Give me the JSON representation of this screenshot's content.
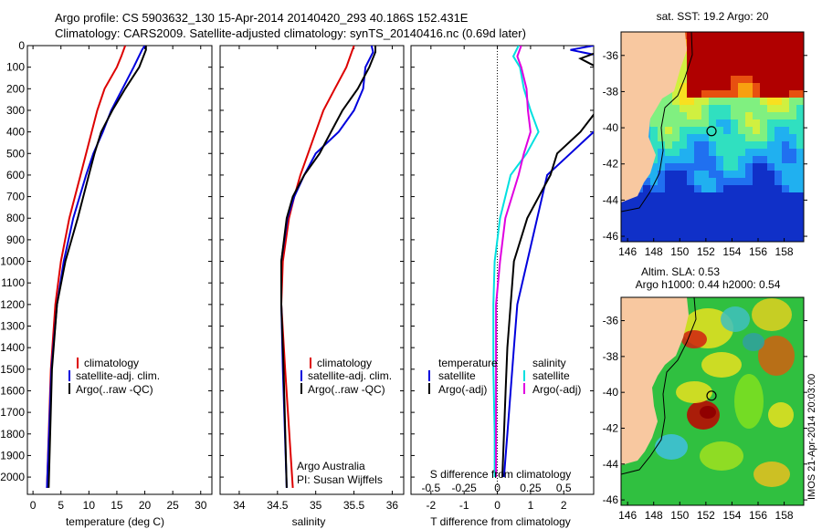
{
  "header": {
    "line1": "Argo profile: CS 5903632_130 15-Apr-2014 20140420_293 40.186S 152.431E",
    "line2": "Climatology: CARS2009. Satellite-adjusted climatology: synTS_20140416.nc (0.69d later)"
  },
  "map_sst": {
    "title": "sat. SST: 19.2 Argo: 20",
    "xticks": [
      "146",
      "148",
      "150",
      "152",
      "154",
      "156",
      "158"
    ],
    "yticks": [
      "-36",
      "-38",
      "-40",
      "-42",
      "-44",
      "-46"
    ],
    "argo_lon": 152.431,
    "argo_lat": -40.186,
    "xlim": [
      145.5,
      159.5
    ],
    "ylim": [
      -46.3,
      -34.7
    ]
  },
  "map_sla": {
    "title1": "Altim. SLA: 0.53",
    "title2": "Argo h1000: 0.44 h2000: 0.54",
    "xticks": [
      "146",
      "148",
      "150",
      "152",
      "154",
      "156",
      "158"
    ],
    "yticks": [
      "-36",
      "-38",
      "-40",
      "-42",
      "-44",
      "-46"
    ],
    "argo_lon": 152.431,
    "argo_lat": -40.186,
    "xlim": [
      145.5,
      159.5
    ],
    "ylim": [
      -46.3,
      -34.7
    ]
  },
  "watermark": "IMOS 21-Apr-2014 20:03:00",
  "colors": {
    "climatology": "#dd0000",
    "satellite": "#0000dd",
    "argo": "#000000",
    "sal_sat": "#00e0e0",
    "sal_argo": "#e000e0",
    "land": "#f8c8a0"
  },
  "chart_data": [
    {
      "type": "line",
      "xlabel": "temperature (deg C)",
      "ylabel": "",
      "xlim": [
        -1,
        32
      ],
      "ylim": [
        2080,
        0
      ],
      "xticks": [
        "0",
        "5",
        "10",
        "15",
        "20",
        "25",
        "30"
      ],
      "yticks": [
        "0",
        "100",
        "200",
        "300",
        "400",
        "500",
        "600",
        "700",
        "800",
        "900",
        "1000",
        "1100",
        "1200",
        "1300",
        "1400",
        "1500",
        "1600",
        "1700",
        "1800",
        "1900",
        "2000"
      ],
      "legend": [
        "climatology",
        "satellite-adj. clim.",
        "Argo(..raw -QC)"
      ],
      "legend_placement": "lower-center",
      "series": [
        {
          "name": "climatology",
          "depth": [
            0,
            50,
            100,
            200,
            300,
            400,
            500,
            600,
            800,
            1000,
            1200,
            1500,
            2050
          ],
          "values": [
            16.5,
            15.8,
            15.0,
            12.8,
            11.5,
            10.5,
            9.5,
            8.5,
            6.5,
            5.0,
            4.0,
            3.2,
            2.5
          ]
        },
        {
          "name": "satellite-adj. clim.",
          "depth": [
            0,
            20,
            100,
            200,
            300,
            400,
            500,
            600,
            800,
            1000,
            1200,
            1500,
            2050
          ],
          "values": [
            20.0,
            19.5,
            18.0,
            16.0,
            14.0,
            12.5,
            10.8,
            9.5,
            7.2,
            5.5,
            4.3,
            3.3,
            2.5
          ]
        },
        {
          "name": "Argo(..raw -QC)",
          "depth": [
            0,
            20,
            100,
            200,
            300,
            400,
            500,
            600,
            800,
            1000,
            1200,
            1500,
            2050
          ],
          "values": [
            20.2,
            20.2,
            19.0,
            16.5,
            14.2,
            12.2,
            11.0,
            10.0,
            8.0,
            5.8,
            4.3,
            3.4,
            2.8
          ]
        }
      ]
    },
    {
      "type": "line",
      "xlabel": "salinity",
      "xlim": [
        33.75,
        36.15
      ],
      "ylim": [
        2080,
        0
      ],
      "xticks": [
        "34",
        "34.5",
        "35",
        "35.5",
        "36"
      ],
      "legend": [
        "climatology",
        "satellite-adj. clim.",
        "Argo(..raw -QC)"
      ],
      "annotation": [
        "Argo Australia",
        "PI: Susan Wijffels"
      ],
      "series": [
        {
          "name": "climatology",
          "depth": [
            0,
            100,
            200,
            300,
            400,
            500,
            600,
            700,
            800,
            1000,
            1200,
            1500,
            2050
          ],
          "values": [
            35.5,
            35.4,
            35.25,
            35.1,
            35.0,
            34.9,
            34.8,
            34.72,
            34.65,
            34.57,
            34.55,
            34.6,
            34.7
          ]
        },
        {
          "name": "satellite-adj. clim.",
          "depth": [
            0,
            30,
            100,
            200,
            300,
            400,
            500,
            600,
            700,
            800,
            1000,
            1200,
            1500,
            2050
          ],
          "values": [
            35.73,
            35.75,
            35.65,
            35.62,
            35.5,
            35.3,
            35.0,
            34.85,
            34.72,
            34.63,
            34.55,
            34.55,
            34.57,
            34.62
          ]
        },
        {
          "name": "Argo(..raw -QC)",
          "depth": [
            0,
            30,
            100,
            200,
            300,
            400,
            500,
            600,
            700,
            800,
            1000,
            1200,
            1500,
            2050
          ],
          "values": [
            35.78,
            35.78,
            35.7,
            35.55,
            35.35,
            35.2,
            35.05,
            34.85,
            34.7,
            34.62,
            34.55,
            34.55,
            34.58,
            34.62
          ]
        }
      ]
    },
    {
      "type": "line",
      "xlabel_top": "S difference from climatology",
      "xlabel": "T difference from climatology",
      "xlim": [
        -2.6,
        2.9
      ],
      "ylim": [
        2080,
        0
      ],
      "xticks": [
        "-2",
        "-1",
        "0",
        "1",
        "2"
      ],
      "xticks_top": [
        "-0.5",
        "-0.25",
        "0",
        "0.25",
        "0.5"
      ],
      "legend_left": {
        "title": "temperature",
        "items": [
          "satellite",
          "Argo(-adj)"
        ]
      },
      "legend_right": {
        "title": "salinity",
        "items": [
          "satellite",
          "Argo(-adj)"
        ]
      },
      "series": [
        {
          "name": "satellite",
          "depth": [
            0,
            20,
            60,
            100,
            200,
            300,
            400,
            500,
            600,
            800,
            1000,
            1200,
            1400,
            1600,
            1800,
            2000
          ],
          "values": [
            2.9,
            2.2,
            3.5,
            3.0,
            3.2,
            3.3,
            2.9,
            2.2,
            1.5,
            1.2,
            0.9,
            0.6,
            0.5,
            0.4,
            0.3,
            0.2
          ]
        },
        {
          "name": "Argo(-adj)",
          "depth": [
            0,
            20,
            60,
            100,
            200,
            300,
            400,
            500,
            600,
            800,
            1000,
            1200,
            1400,
            1600,
            1800,
            2000
          ],
          "values": [
            3.5,
            3.2,
            2.5,
            3.0,
            3.5,
            3.0,
            2.5,
            1.8,
            1.6,
            0.9,
            0.5,
            0.4,
            0.3,
            0.25,
            0.2,
            0.15
          ]
        },
        {
          "name": "satellite",
          "depth": [
            0,
            50,
            100,
            200,
            300,
            400,
            500,
            600,
            800,
            1000,
            1200,
            1500,
            1800,
            2000
          ],
          "values": [
            0.16,
            0.12,
            0.17,
            0.2,
            0.25,
            0.31,
            0.22,
            0.1,
            0.02,
            -0.02,
            -0.03,
            -0.03,
            -0.02,
            -0.02
          ]
        },
        {
          "name": "Argo(-adj)",
          "depth": [
            0,
            50,
            100,
            200,
            300,
            400,
            500,
            600,
            800,
            1000,
            1200,
            1500,
            1800,
            2000
          ],
          "values": [
            0.18,
            0.15,
            0.18,
            0.22,
            0.23,
            0.25,
            0.2,
            0.16,
            0.06,
            0.02,
            -0.01,
            -0.01,
            -0.01,
            -0.01
          ]
        }
      ]
    }
  ]
}
